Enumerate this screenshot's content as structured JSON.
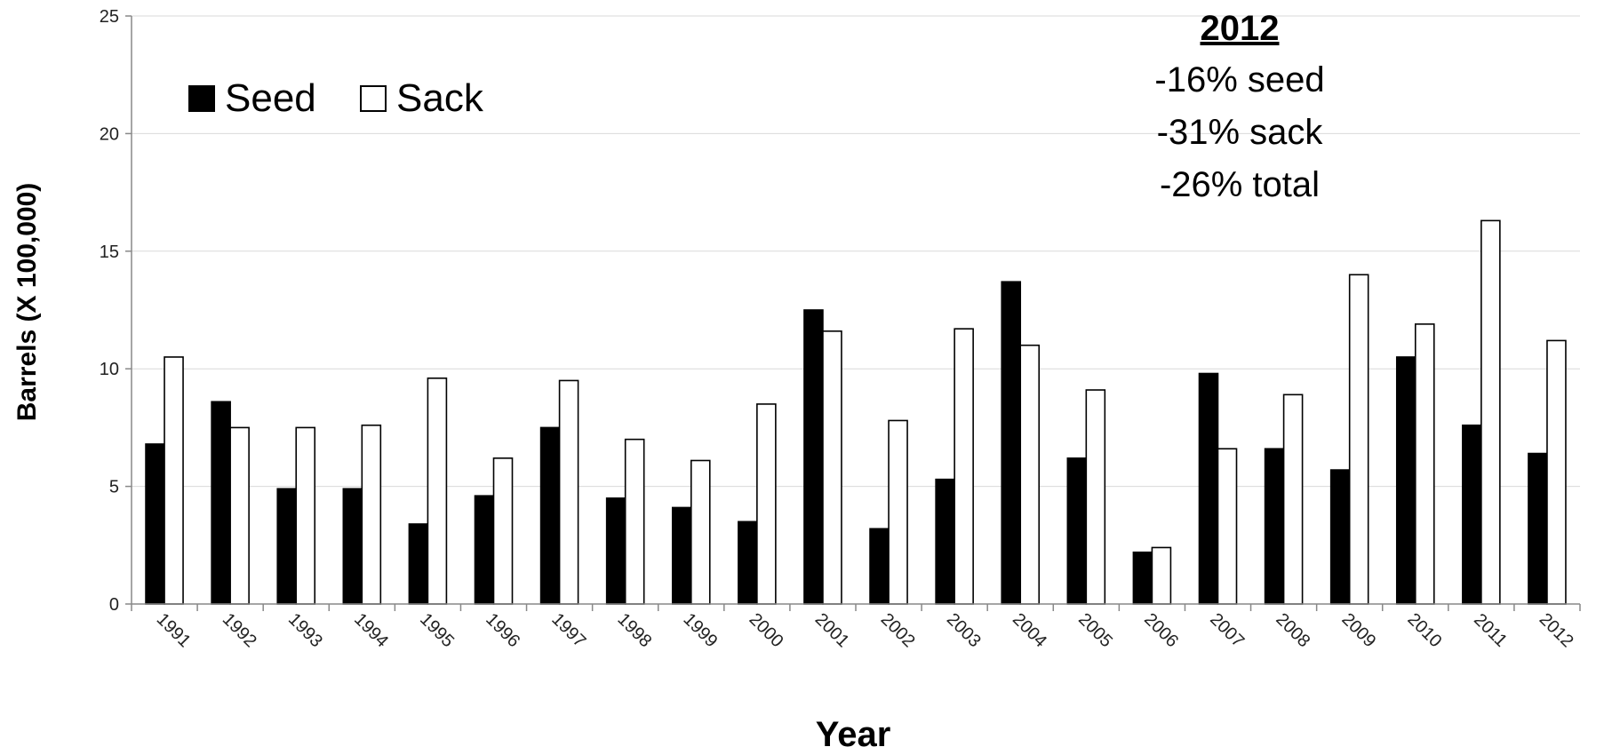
{
  "chart_data": {
    "type": "bar",
    "title": "",
    "xlabel": "Year",
    "ylabel": "Barrels (X 100,000)",
    "ylim": [
      0,
      25
    ],
    "yticks": [
      0,
      5,
      10,
      15,
      20,
      25
    ],
    "grid": true,
    "legend_position": "top-left",
    "categories": [
      "1991",
      "1992",
      "1993",
      "1994",
      "1995",
      "1996",
      "1997",
      "1998",
      "1999",
      "2000",
      "2001",
      "2002",
      "2003",
      "2004",
      "2005",
      "2006",
      "2007",
      "2008",
      "2009",
      "2010",
      "2011",
      "2012"
    ],
    "series": [
      {
        "name": "Seed",
        "color": "#000000",
        "values": [
          6.8,
          8.6,
          4.9,
          4.9,
          3.4,
          4.6,
          7.5,
          4.5,
          4.1,
          3.5,
          12.5,
          3.2,
          5.3,
          13.7,
          6.2,
          2.2,
          9.8,
          6.6,
          5.7,
          10.5,
          7.6,
          6.4
        ]
      },
      {
        "name": "Sack",
        "color": "#ffffff",
        "values": [
          10.5,
          7.5,
          7.5,
          7.6,
          9.6,
          6.2,
          9.5,
          7.0,
          6.1,
          8.5,
          11.6,
          7.8,
          11.7,
          11.0,
          9.1,
          2.4,
          6.6,
          8.9,
          14.0,
          11.9,
          16.3,
          11.2
        ]
      }
    ],
    "annotation": {
      "heading": "2012",
      "lines": [
        "-16% seed",
        "-31% sack",
        "-26% total"
      ]
    }
  }
}
